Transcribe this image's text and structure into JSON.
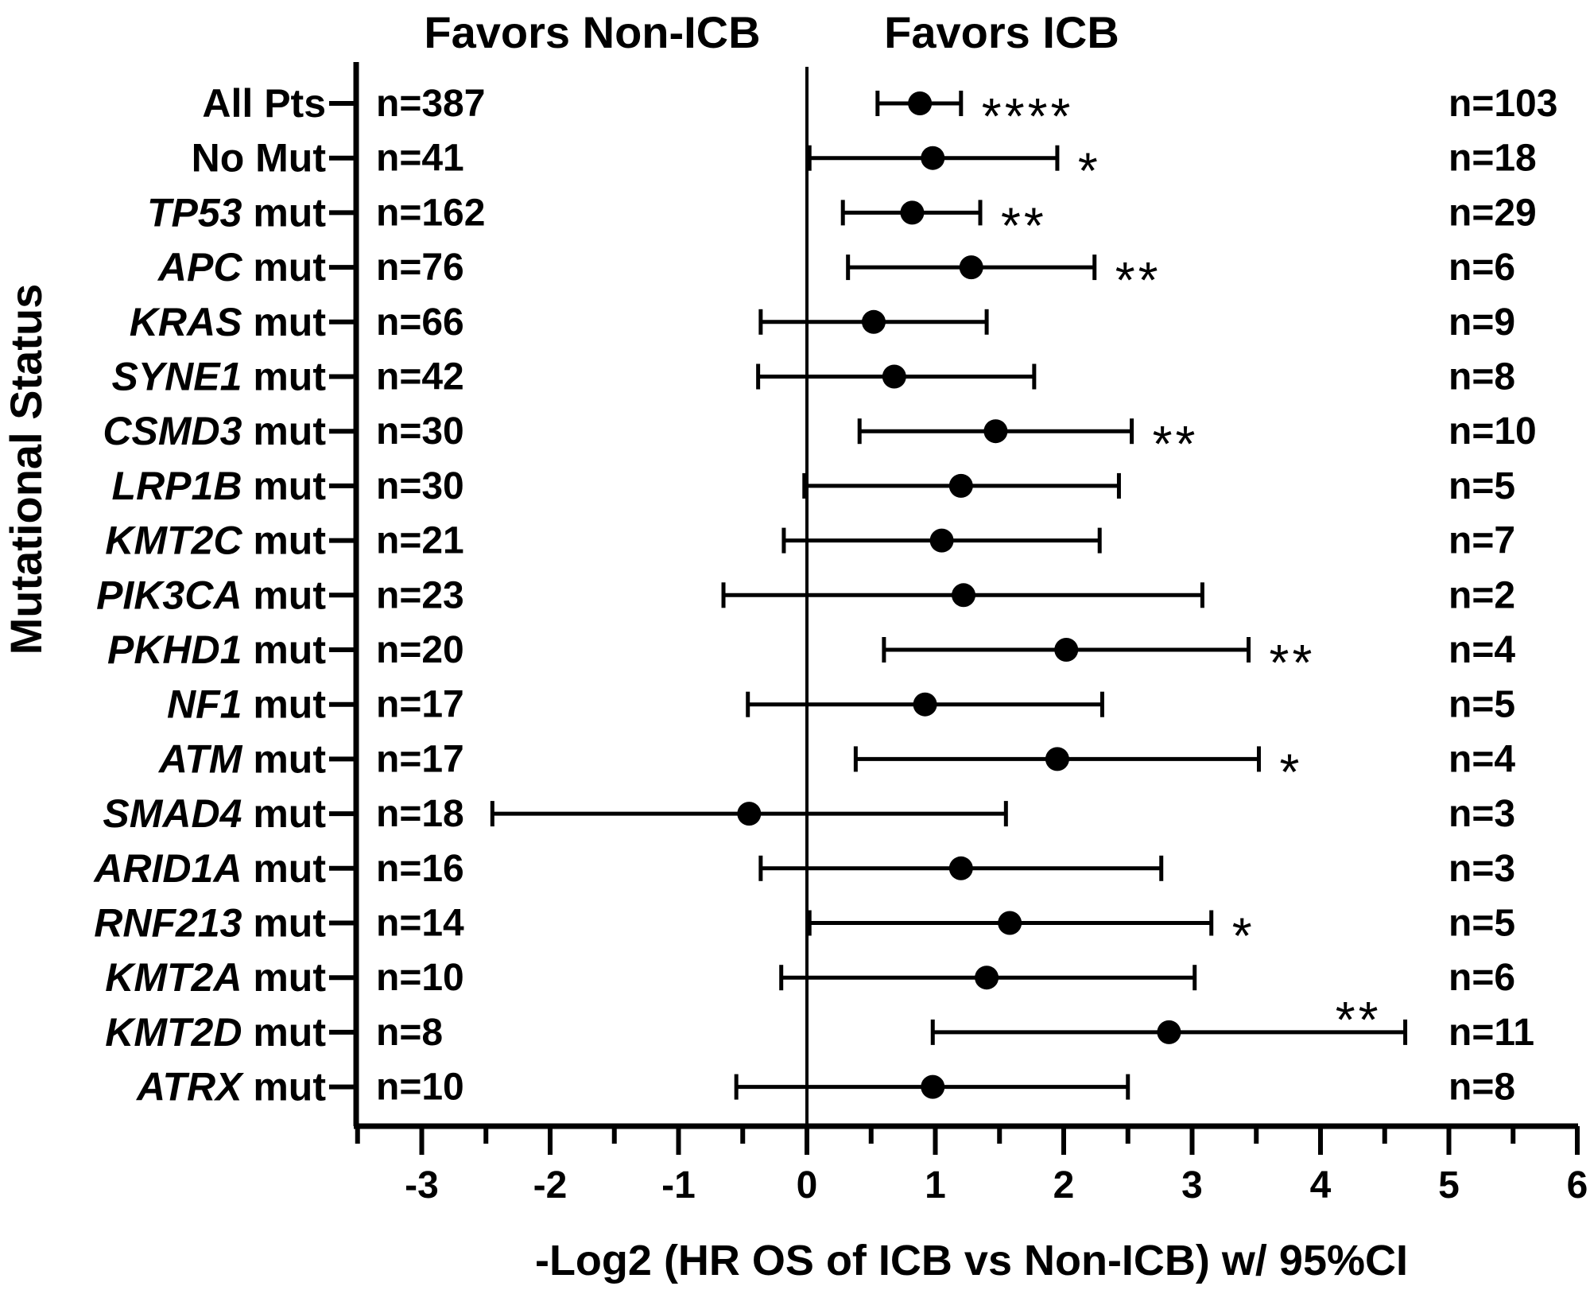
{
  "chart_data": {
    "type": "forest",
    "header_left": "Favors Non-ICB",
    "header_right": "Favors ICB",
    "xlabel": "-Log2 (HR OS of ICB vs Non-ICB) w/ 95%CI",
    "ylabel": "Mutational Status",
    "xlim": [
      -3.5,
      6
    ],
    "xticks": [
      "-3",
      "-2",
      "-1",
      "0",
      "1",
      "2",
      "3",
      "4",
      "5",
      "6"
    ],
    "rows": [
      {
        "gene": "",
        "label": "All Pts",
        "n_left": "n=387",
        "n_right": "n=103",
        "est": 0.88,
        "lo": 0.55,
        "hi": 1.2,
        "sig": "****"
      },
      {
        "gene": "",
        "label": "No Mut",
        "n_left": "n=41",
        "n_right": "n=18",
        "est": 0.98,
        "lo": 0.02,
        "hi": 1.95,
        "sig": "*"
      },
      {
        "gene": "TP53",
        "label": " mut",
        "n_left": "n=162",
        "n_right": "n=29",
        "est": 0.82,
        "lo": 0.28,
        "hi": 1.35,
        "sig": "**"
      },
      {
        "gene": "APC",
        "label": " mut",
        "n_left": "n=76",
        "n_right": "n=6",
        "est": 1.28,
        "lo": 0.32,
        "hi": 2.24,
        "sig": "**"
      },
      {
        "gene": "KRAS",
        "label": " mut",
        "n_left": "n=66",
        "n_right": "n=9",
        "est": 0.52,
        "lo": -0.36,
        "hi": 1.4,
        "sig": ""
      },
      {
        "gene": "SYNE1",
        "label": " mut",
        "n_left": "n=42",
        "n_right": "n=8",
        "est": 0.68,
        "lo": -0.38,
        "hi": 1.77,
        "sig": ""
      },
      {
        "gene": "CSMD3",
        "label": " mut",
        "n_left": "n=30",
        "n_right": "n=10",
        "est": 1.47,
        "lo": 0.41,
        "hi": 2.53,
        "sig": "**"
      },
      {
        "gene": "LRP1B",
        "label": " mut",
        "n_left": "n=30",
        "n_right": "n=5",
        "est": 1.2,
        "lo": -0.02,
        "hi": 2.43,
        "sig": ""
      },
      {
        "gene": "KMT2C",
        "label": " mut",
        "n_left": "n=21",
        "n_right": "n=7",
        "est": 1.05,
        "lo": -0.18,
        "hi": 2.28,
        "sig": ""
      },
      {
        "gene": "PIK3CA",
        "label": " mut",
        "n_left": "n=23",
        "n_right": "n=2",
        "est": 1.22,
        "lo": -0.65,
        "hi": 3.08,
        "sig": ""
      },
      {
        "gene": "PKHD1",
        "label": " mut",
        "n_left": "n=20",
        "n_right": "n=4",
        "est": 2.02,
        "lo": 0.6,
        "hi": 3.44,
        "sig": "**"
      },
      {
        "gene": "NF1",
        "label": " mut",
        "n_left": "n=17",
        "n_right": "n=5",
        "est": 0.92,
        "lo": -0.46,
        "hi": 2.3,
        "sig": ""
      },
      {
        "gene": "ATM",
        "label": " mut",
        "n_left": "n=17",
        "n_right": "n=4",
        "est": 1.95,
        "lo": 0.38,
        "hi": 3.52,
        "sig": "*"
      },
      {
        "gene": "SMAD4",
        "label": " mut",
        "n_left": "n=18",
        "n_right": "n=3",
        "est": -0.45,
        "lo": -2.45,
        "hi": 1.55,
        "sig": ""
      },
      {
        "gene": "ARID1A",
        "label": " mut",
        "n_left": "n=16",
        "n_right": "n=3",
        "est": 1.2,
        "lo": -0.36,
        "hi": 2.76,
        "sig": ""
      },
      {
        "gene": "RNF213",
        "label": " mut",
        "n_left": "n=14",
        "n_right": "n=5",
        "est": 1.58,
        "lo": 0.02,
        "hi": 3.15,
        "sig": "*"
      },
      {
        "gene": "KMT2A",
        "label": " mut",
        "n_left": "n=10",
        "n_right": "n=6",
        "est": 1.4,
        "lo": -0.2,
        "hi": 3.02,
        "sig": ""
      },
      {
        "gene": "KMT2D",
        "label": " mut",
        "n_left": "n=8",
        "n_right": "n=11",
        "est": 2.82,
        "lo": 0.98,
        "hi": 4.66,
        "sig": "**"
      },
      {
        "gene": "ATRX",
        "label": " mut",
        "n_left": "n=10",
        "n_right": "n=8",
        "est": 0.98,
        "lo": -0.55,
        "hi": 2.5,
        "sig": ""
      }
    ]
  }
}
